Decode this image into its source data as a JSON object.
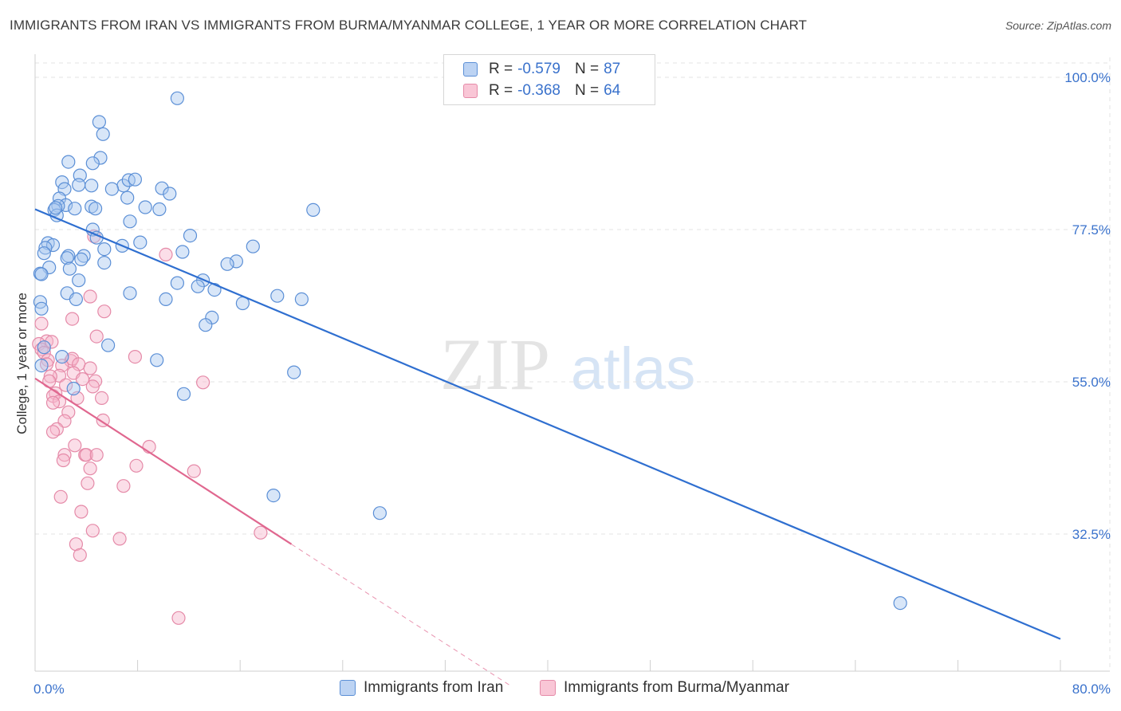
{
  "title": "IMMIGRANTS FROM IRAN VS IMMIGRANTS FROM BURMA/MYANMAR COLLEGE, 1 YEAR OR MORE CORRELATION CHART",
  "source": "Source: ZipAtlas.com",
  "watermark": {
    "zip": "ZIP",
    "atlas": "atlas"
  },
  "colors": {
    "iran_fill": "#a9c8f0",
    "iran_stroke": "#5b8fd6",
    "iran_line": "#2f6fd0",
    "burma_fill": "#f6b6cb",
    "burma_stroke": "#e58aa8",
    "burma_line": "#e0678f",
    "axis_label": "#3a72cc",
    "grid": "#e3e3e3"
  },
  "legend_top": [
    {
      "r_label": "R =",
      "r_value": "-0.579",
      "n_label": "N =",
      "n_value": "87"
    },
    {
      "r_label": "R =",
      "r_value": "-0.368",
      "n_label": "N =",
      "n_value": "64"
    }
  ],
  "legend_bottom": [
    "Immigrants from Iran",
    "Immigrants from Burma/Myanmar"
  ],
  "chart_data": {
    "type": "scatter",
    "title": "IMMIGRANTS FROM IRAN VS IMMIGRANTS FROM BURMA/MYANMAR COLLEGE, 1 YEAR OR MORE CORRELATION CHART",
    "xlabel": "",
    "ylabel": "College, 1 year or more",
    "xlim": [
      0,
      80
    ],
    "ylim": [
      10,
      102
    ],
    "x_tick_labels": [
      "0.0%",
      "80.0%"
    ],
    "y_ticks": [
      32.5,
      55.0,
      77.5,
      100.0
    ],
    "y_tick_labels": [
      "32.5%",
      "55.0%",
      "77.5%",
      "100.0%"
    ],
    "grid": "horizontal dashed",
    "legend_placement": "top-center and bottom",
    "series": [
      {
        "name": "Immigrants from Iran",
        "r": -0.579,
        "n": 87,
        "trend": {
          "x": [
            0,
            80
          ],
          "y": [
            80.5,
            17.0
          ]
        },
        "points": [
          [
            11.1,
            96.9
          ],
          [
            5.0,
            93.4
          ],
          [
            5.3,
            91.6
          ],
          [
            2.6,
            87.5
          ],
          [
            5.1,
            88.1
          ],
          [
            4.5,
            87.3
          ],
          [
            3.5,
            85.5
          ],
          [
            2.1,
            84.5
          ],
          [
            3.4,
            84.1
          ],
          [
            2.3,
            83.5
          ],
          [
            4.4,
            84.0
          ],
          [
            6.9,
            84.0
          ],
          [
            6.0,
            83.5
          ],
          [
            7.3,
            84.8
          ],
          [
            7.8,
            84.9
          ],
          [
            9.9,
            83.6
          ],
          [
            7.2,
            82.2
          ],
          [
            10.5,
            82.8
          ],
          [
            1.9,
            82.1
          ],
          [
            2.4,
            81.1
          ],
          [
            1.8,
            81.0
          ],
          [
            3.1,
            80.6
          ],
          [
            1.5,
            80.4
          ],
          [
            1.7,
            79.6
          ],
          [
            4.4,
            80.9
          ],
          [
            4.7,
            80.6
          ],
          [
            8.6,
            80.8
          ],
          [
            9.7,
            80.5
          ],
          [
            21.7,
            80.4
          ],
          [
            1.6,
            80.7
          ],
          [
            7.4,
            78.7
          ],
          [
            4.5,
            77.5
          ],
          [
            4.8,
            76.3
          ],
          [
            12.1,
            76.6
          ],
          [
            1.0,
            75.5
          ],
          [
            1.4,
            75.2
          ],
          [
            0.8,
            74.8
          ],
          [
            6.8,
            75.1
          ],
          [
            8.2,
            75.6
          ],
          [
            5.4,
            74.6
          ],
          [
            11.5,
            74.2
          ],
          [
            17.0,
            75.0
          ],
          [
            0.7,
            74.0
          ],
          [
            2.6,
            73.6
          ],
          [
            3.8,
            73.6
          ],
          [
            2.5,
            73.3
          ],
          [
            3.6,
            73.1
          ],
          [
            5.4,
            72.6
          ],
          [
            15.7,
            72.8
          ],
          [
            15.0,
            72.4
          ],
          [
            1.1,
            71.9
          ],
          [
            2.7,
            71.7
          ],
          [
            0.4,
            71.0
          ],
          [
            0.5,
            70.9
          ],
          [
            3.4,
            70.0
          ],
          [
            13.1,
            70.0
          ],
          [
            11.1,
            69.6
          ],
          [
            12.7,
            69.1
          ],
          [
            14.0,
            68.6
          ],
          [
            7.4,
            68.1
          ],
          [
            2.5,
            68.1
          ],
          [
            3.2,
            67.2
          ],
          [
            10.2,
            67.2
          ],
          [
            18.9,
            67.7
          ],
          [
            20.8,
            67.2
          ],
          [
            16.2,
            66.6
          ],
          [
            0.4,
            66.8
          ],
          [
            0.5,
            65.8
          ],
          [
            13.8,
            64.5
          ],
          [
            13.3,
            63.4
          ],
          [
            5.7,
            60.4
          ],
          [
            0.7,
            60.1
          ],
          [
            2.1,
            58.7
          ],
          [
            9.5,
            58.2
          ],
          [
            0.5,
            57.4
          ],
          [
            20.2,
            56.4
          ],
          [
            3.0,
            54.0
          ],
          [
            11.6,
            53.2
          ],
          [
            18.6,
            38.2
          ],
          [
            26.9,
            35.6
          ],
          [
            67.5,
            22.3
          ]
        ]
      },
      {
        "name": "Immigrants from Burma/Myanmar",
        "r": -0.368,
        "n": 64,
        "trend": {
          "x": [
            0,
            20.0
          ],
          "y": [
            55.5,
            31.0
          ]
        },
        "trend_extension": {
          "x": [
            20.0,
            37.0
          ],
          "y": [
            31.0,
            10.2
          ]
        },
        "points": [
          [
            4.6,
            76.5
          ],
          [
            10.2,
            73.8
          ],
          [
            4.3,
            67.6
          ],
          [
            5.4,
            65.4
          ],
          [
            2.9,
            64.3
          ],
          [
            0.5,
            63.6
          ],
          [
            4.8,
            61.7
          ],
          [
            0.9,
            61.0
          ],
          [
            1.3,
            60.9
          ],
          [
            0.3,
            60.6
          ],
          [
            0.5,
            59.8
          ],
          [
            0.7,
            59.3
          ],
          [
            7.8,
            58.7
          ],
          [
            2.8,
            58.1
          ],
          [
            2.9,
            58.4
          ],
          [
            1.0,
            58.2
          ],
          [
            3.4,
            57.6
          ],
          [
            0.9,
            57.6
          ],
          [
            2.1,
            57.4
          ],
          [
            4.3,
            57.0
          ],
          [
            3.0,
            56.3
          ],
          [
            1.9,
            55.9
          ],
          [
            1.2,
            55.8
          ],
          [
            3.7,
            55.4
          ],
          [
            1.1,
            55.1
          ],
          [
            4.7,
            55.1
          ],
          [
            13.1,
            54.9
          ],
          [
            2.4,
            54.5
          ],
          [
            4.5,
            54.3
          ],
          [
            1.6,
            53.3
          ],
          [
            1.4,
            52.9
          ],
          [
            3.3,
            52.6
          ],
          [
            5.2,
            52.6
          ],
          [
            1.9,
            52.1
          ],
          [
            1.4,
            51.9
          ],
          [
            2.6,
            50.5
          ],
          [
            2.3,
            49.2
          ],
          [
            5.3,
            49.3
          ],
          [
            1.7,
            48.0
          ],
          [
            1.4,
            47.6
          ],
          [
            3.1,
            45.6
          ],
          [
            8.9,
            45.4
          ],
          [
            2.3,
            44.2
          ],
          [
            3.9,
            44.2
          ],
          [
            4.0,
            44.2
          ],
          [
            4.8,
            44.2
          ],
          [
            2.2,
            43.4
          ],
          [
            4.3,
            42.2
          ],
          [
            7.9,
            42.6
          ],
          [
            12.4,
            41.8
          ],
          [
            4.1,
            40.0
          ],
          [
            6.9,
            39.6
          ],
          [
            2.0,
            38.0
          ],
          [
            3.6,
            35.8
          ],
          [
            4.5,
            33.0
          ],
          [
            17.6,
            32.7
          ],
          [
            6.6,
            31.8
          ],
          [
            3.2,
            31.0
          ],
          [
            3.5,
            29.4
          ],
          [
            11.2,
            20.1
          ]
        ]
      }
    ]
  }
}
